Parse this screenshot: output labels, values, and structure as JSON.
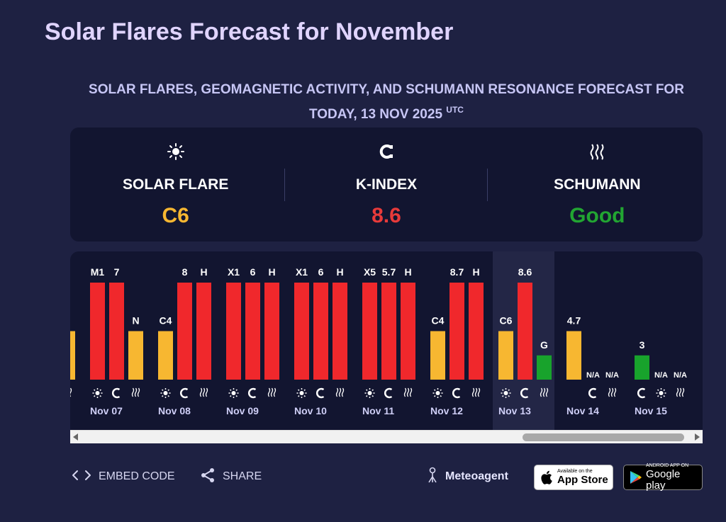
{
  "page": {
    "title": "Solar Flares Forecast for November",
    "subtitle": "SOLAR FLARES, GEOMAGNETIC ACTIVITY, AND SCHUMANN RESONANCE FORECAST FOR TODAY, 13 NOV 2025",
    "subtitle_tz": "UTC"
  },
  "summary": [
    {
      "icon": "sun-icon",
      "label": "SOLAR FLARE",
      "value": "C6",
      "color": "#f7b731"
    },
    {
      "icon": "magnet-icon",
      "label": "K-INDEX",
      "value": "8.6",
      "color": "#e83a3a"
    },
    {
      "icon": "waves-icon",
      "label": "SCHUMANN",
      "value": "Good",
      "color": "#22a532"
    }
  ],
  "colors": {
    "yellow": "#f7b731",
    "red": "#f0282c",
    "green": "#18a32c",
    "today_band": "#232646"
  },
  "chart_data": {
    "type": "bar",
    "series_icons": [
      "sun-icon",
      "magnet-icon",
      "waves-icon"
    ],
    "days": [
      {
        "date": "",
        "bars": [
          {
            "label": "",
            "level": 0.5,
            "color": "yellow"
          }
        ],
        "partial": true
      },
      {
        "date": "Nov 07",
        "bars": [
          {
            "label": "M1",
            "level": 1.0,
            "color": "red"
          },
          {
            "label": "7",
            "level": 1.0,
            "color": "red"
          },
          {
            "label": "N",
            "level": 0.5,
            "color": "yellow"
          }
        ]
      },
      {
        "date": "Nov 08",
        "bars": [
          {
            "label": "C4",
            "level": 0.5,
            "color": "yellow"
          },
          {
            "label": "8",
            "level": 1.0,
            "color": "red"
          },
          {
            "label": "H",
            "level": 1.0,
            "color": "red"
          }
        ]
      },
      {
        "date": "Nov 09",
        "bars": [
          {
            "label": "X1",
            "level": 1.0,
            "color": "red"
          },
          {
            "label": "6",
            "level": 1.0,
            "color": "red"
          },
          {
            "label": "H",
            "level": 1.0,
            "color": "red"
          }
        ]
      },
      {
        "date": "Nov 10",
        "bars": [
          {
            "label": "X1",
            "level": 1.0,
            "color": "red"
          },
          {
            "label": "6",
            "level": 1.0,
            "color": "red"
          },
          {
            "label": "H",
            "level": 1.0,
            "color": "red"
          }
        ]
      },
      {
        "date": "Nov 11",
        "bars": [
          {
            "label": "X5",
            "level": 1.0,
            "color": "red"
          },
          {
            "label": "5.7",
            "level": 1.0,
            "color": "red"
          },
          {
            "label": "H",
            "level": 1.0,
            "color": "red"
          }
        ]
      },
      {
        "date": "Nov 12",
        "bars": [
          {
            "label": "C4",
            "level": 0.5,
            "color": "yellow"
          },
          {
            "label": "8.7",
            "level": 1.0,
            "color": "red"
          },
          {
            "label": "H",
            "level": 1.0,
            "color": "red"
          }
        ]
      },
      {
        "date": "Nov 13",
        "today": true,
        "bars": [
          {
            "label": "C6",
            "level": 0.5,
            "color": "yellow"
          },
          {
            "label": "8.6",
            "level": 1.0,
            "color": "red"
          },
          {
            "label": "G",
            "level": 0.25,
            "color": "green"
          }
        ]
      },
      {
        "date": "Nov 14",
        "bars": [
          {
            "label": "4.7",
            "level": 0.5,
            "color": "yellow"
          },
          {
            "label": "N/A",
            "level": 0,
            "color": "yellow"
          },
          {
            "label": "N/A",
            "level": 0,
            "color": "yellow"
          }
        ],
        "icons": [
          "magnet-icon",
          "waves-icon"
        ]
      },
      {
        "date": "Nov 15",
        "bars": [
          {
            "label": "3",
            "level": 0.25,
            "color": "green"
          },
          {
            "label": "N/A",
            "level": 0,
            "color": "yellow"
          },
          {
            "label": "N/A",
            "level": 0,
            "color": "yellow"
          }
        ],
        "icons": [
          "magnet-icon",
          "sun-icon",
          "waves-icon"
        ]
      }
    ]
  },
  "footer": {
    "embed_label": "EMBED CODE",
    "share_label": "SHARE",
    "brand": "Meteoagent",
    "apple_small": "Available on the",
    "apple_big": "App Store",
    "google_small": "ANDROID APP ON",
    "google_big": "Google play"
  }
}
